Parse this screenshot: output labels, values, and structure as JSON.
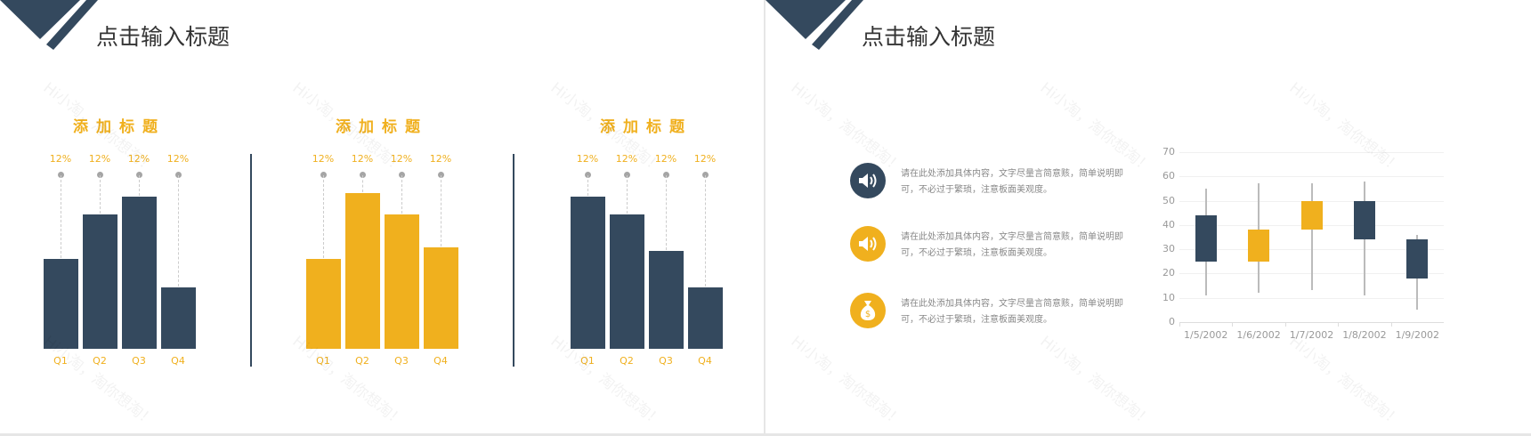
{
  "slides": [
    {
      "title": "点击输入标题"
    },
    {
      "title": "点击输入标题"
    }
  ],
  "watermark": "Hi小淘，淘你想淘！",
  "colors": {
    "dark": "#34495E",
    "accent": "#F0B01E"
  },
  "chart_data": [
    {
      "type": "bar",
      "title": "添加标题",
      "categories": [
        "Q1",
        "Q2",
        "Q3",
        "Q4"
      ],
      "values": [
        2.5,
        3.7,
        4.2,
        1.7
      ],
      "data_labels": [
        "12%",
        "12%",
        "12%",
        "12%"
      ],
      "color": "#34495E"
    },
    {
      "type": "bar",
      "title": "添加标题",
      "categories": [
        "Q1",
        "Q2",
        "Q3",
        "Q4"
      ],
      "values": [
        2.5,
        4.3,
        3.7,
        2.8
      ],
      "data_labels": [
        "12%",
        "12%",
        "12%",
        "12%"
      ],
      "color": "#F0B01E"
    },
    {
      "type": "bar",
      "title": "添加标题",
      "categories": [
        "Q1",
        "Q2",
        "Q3",
        "Q4"
      ],
      "values": [
        4.2,
        3.7,
        2.7,
        1.7
      ],
      "data_labels": [
        "12%",
        "12%",
        "12%",
        "12%"
      ],
      "color": "#34495E"
    },
    {
      "type": "candlestick",
      "categories": [
        "1/5/2002",
        "1/6/2002",
        "1/7/2002",
        "1/8/2002",
        "1/9/2002"
      ],
      "open": [
        44,
        25,
        38,
        50,
        34
      ],
      "close": [
        25,
        38,
        50,
        34,
        18
      ],
      "high": [
        55,
        57,
        57,
        58,
        36
      ],
      "low": [
        11,
        12,
        13,
        11,
        5
      ],
      "up_color": "#F0B01E",
      "down_color": "#34495E",
      "ylim": [
        0,
        70
      ],
      "yticks": [
        0,
        10,
        20,
        30,
        40,
        50,
        60,
        70
      ],
      "grid": true
    }
  ],
  "items": [
    {
      "icon": "speaker-icon",
      "color": "#34495E",
      "text": "请在此处添加具体内容，文字尽量言简意赅，简单说明即可，不必过于繁琐，注意板面美观度。"
    },
    {
      "icon": "speaker-icon",
      "color": "#F0B01E",
      "text": "请在此处添加具体内容，文字尽量言简意赅，简单说明即可，不必过于繁琐，注意板面美观度。"
    },
    {
      "icon": "money-bag-icon",
      "color": "#F0B01E",
      "text": "请在此处添加具体内容，文字尽量言简意赅，简单说明即可，不必过于繁琐，注意板面美观度。"
    }
  ]
}
